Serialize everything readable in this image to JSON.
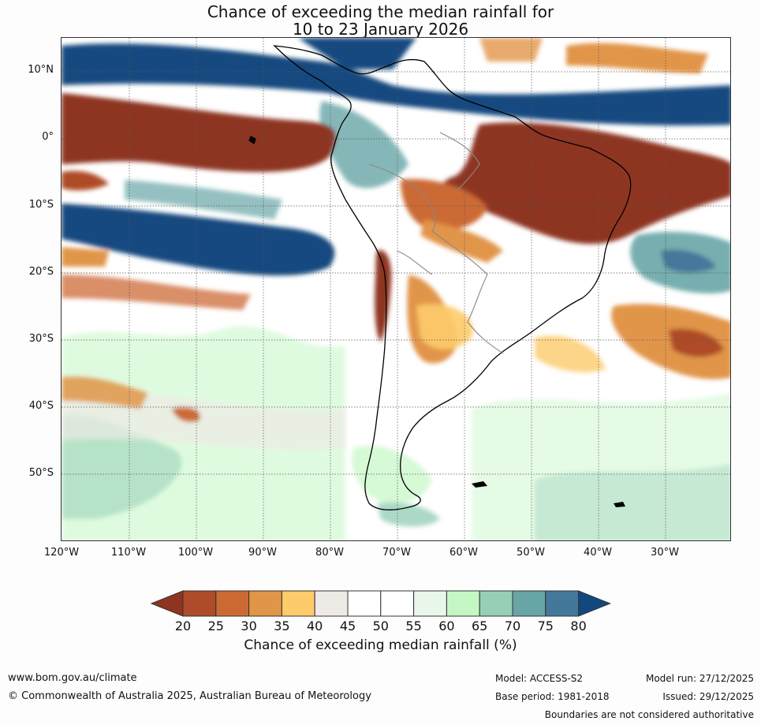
{
  "title": {
    "line1": "Chance of exceeding the median rainfall for",
    "line2": "10 to 23 January 2026"
  },
  "map": {
    "region": "South America",
    "lat_labels": [
      "10°N",
      "0°",
      "10°S",
      "20°S",
      "30°S",
      "40°S",
      "50°S"
    ],
    "lon_labels": [
      "120°W",
      "110°W",
      "100°W",
      "90°W",
      "80°W",
      "70°W",
      "60°W",
      "50°W",
      "40°W",
      "30°W"
    ],
    "gridlines": true
  },
  "colorbar": {
    "title": "Chance of exceeding median rainfall (%)",
    "ticks": [
      "20",
      "25",
      "30",
      "35",
      "40",
      "45",
      "50",
      "55",
      "60",
      "65",
      "70",
      "75",
      "80"
    ],
    "colors": [
      "#8e3420",
      "#ae4b28",
      "#cc6a34",
      "#e19548",
      "#fdcb6a",
      "#eeebe6",
      "#ffffff",
      "#ffffff",
      "#e9f7eb",
      "#c5f7c5",
      "#96cfb6",
      "#68a5a6",
      "#44789a",
      "#13487f"
    ]
  },
  "footer": {
    "website": "www.bom.gov.au/climate",
    "copyright": "© Commonwealth of Australia 2025, Australian Bureau of Meteorology",
    "model": "Model: ACCESS-S2",
    "base_period": "Base period: 1981-2018",
    "model_run": "Model run: 27/12/2025",
    "issued": "Issued: 29/12/2025",
    "disclaimer": "Boundaries are not considered authoritative"
  }
}
